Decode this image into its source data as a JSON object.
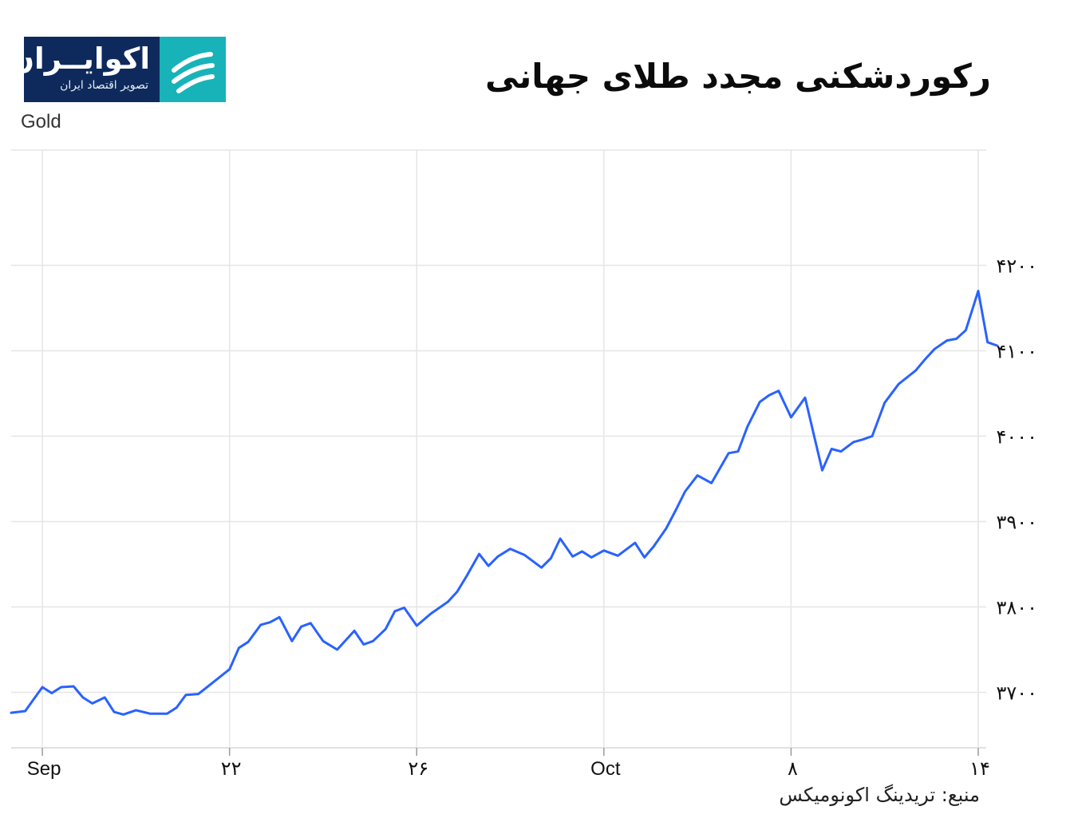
{
  "title": "رکوردشکنی مجدد طلای جهانی",
  "logo": {
    "name": "اکوایــران",
    "tagline": "تصویر اقتصاد ایران"
  },
  "source": "منبع: تریدینگ اکونومیکس",
  "colors": {
    "line": "#2962ff",
    "grid": "#e6e6e6",
    "logo_bg": "#0e2a5c",
    "logo_accent": "#17b3b8"
  },
  "chart_data": {
    "type": "line",
    "title": "رکوردشکنی مجدد طلای جهانی",
    "ylabel": "Gold",
    "xlabel": "",
    "ylim": [
      3635,
      4335
    ],
    "xlim": [
      "2025-09-15",
      "2025-10-16"
    ],
    "grid": true,
    "y_axis_side": "right",
    "yticks": [
      3700,
      3800,
      3900,
      4000,
      4100,
      4200
    ],
    "ytick_labels": [
      "۳۷۰۰",
      "۳۸۰۰",
      "۳۹۰۰",
      "۴۰۰۰",
      "۴۱۰۰",
      "۴۲۰۰"
    ],
    "xticks": [
      {
        "date": "2025-09-16",
        "label": "Sep"
      },
      {
        "date": "2025-09-22",
        "label": "۲۲"
      },
      {
        "date": "2025-09-28",
        "label": "۲۶"
      },
      {
        "date": "2025-10-04",
        "label": "Oct"
      },
      {
        "date": "2025-10-10",
        "label": "۸"
      },
      {
        "date": "2025-10-16",
        "label": "۱۴"
      }
    ],
    "series": [
      {
        "name": "",
        "x": [
          "2025-09-15",
          "2025-09-15",
          "2025-09-16",
          "2025-09-16",
          "2025-09-16",
          "2025-09-17",
          "2025-09-17",
          "2025-09-17",
          "2025-09-18",
          "2025-09-18",
          "2025-09-18",
          "2025-09-19",
          "2025-09-19",
          "2025-09-20",
          "2025-09-20",
          "2025-09-20",
          "2025-09-21",
          "2025-09-21",
          "2025-09-22",
          "2025-09-22",
          "2025-09-22",
          "2025-09-23",
          "2025-09-23",
          "2025-09-23",
          "2025-09-24",
          "2025-09-24",
          "2025-09-24",
          "2025-09-25",
          "2025-09-25",
          "2025-09-26",
          "2025-09-26",
          "2025-09-26",
          "2025-09-27",
          "2025-09-27",
          "2025-09-27",
          "2025-09-28",
          "2025-09-28",
          "2025-09-29",
          "2025-09-29",
          "2025-09-29",
          "2025-09-30",
          "2025-09-30",
          "2025-09-30",
          "2025-10-01",
          "2025-10-01",
          "2025-10-02",
          "2025-10-02",
          "2025-10-02",
          "2025-10-03",
          "2025-10-03",
          "2025-10-03",
          "2025-10-04",
          "2025-10-04",
          "2025-10-05",
          "2025-10-05",
          "2025-10-05",
          "2025-10-06",
          "2025-10-06",
          "2025-10-06",
          "2025-10-07",
          "2025-10-07",
          "2025-10-08",
          "2025-10-08",
          "2025-10-08",
          "2025-10-09",
          "2025-10-09",
          "2025-10-09",
          "2025-10-10",
          "2025-10-10",
          "2025-10-11",
          "2025-10-11",
          "2025-10-11",
          "2025-10-12",
          "2025-10-12",
          "2025-10-12",
          "2025-10-13",
          "2025-10-13",
          "2025-10-14",
          "2025-10-14",
          "2025-10-14",
          "2025-10-15",
          "2025-10-15",
          "2025-10-15",
          "2025-10-16",
          "2025-10-16",
          "2025-10-16"
        ],
        "y": [
          3676,
          3678,
          3706,
          3699,
          3706,
          3707,
          3694,
          3687,
          3694,
          3677,
          3674,
          3679,
          3675,
          3675,
          3682,
          3697,
          3698,
          3711,
          3727,
          3752,
          3759,
          3779,
          3782,
          3788,
          3760,
          3777,
          3781,
          3760,
          3750,
          3772,
          3756,
          3760,
          3774,
          3795,
          3799,
          3778,
          3792,
          3806,
          3818,
          3836,
          3862,
          3848,
          3859,
          3868,
          3861,
          3846,
          3857,
          3880,
          3859,
          3865,
          3858,
          3866,
          3860,
          3875,
          3858,
          3871,
          3892,
          3913,
          3935,
          3954,
          3945,
          3980,
          3982,
          4011,
          4040,
          4048,
          4053,
          4022,
          4045,
          3960,
          3985,
          3982,
          3993,
          3996,
          4000,
          4039,
          4061,
          4077,
          4090,
          4102,
          4112,
          4114,
          4124,
          4170,
          4110,
          4106
        ]
      }
    ]
  }
}
